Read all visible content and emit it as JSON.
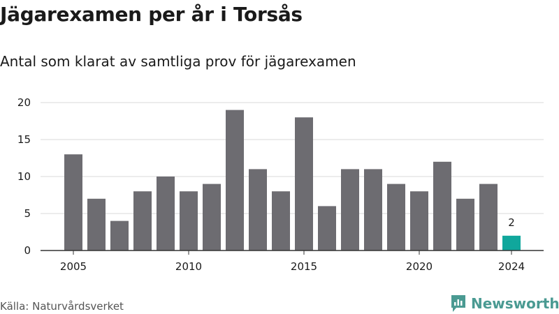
{
  "title": "Jägarexamen per år i Torsås",
  "subtitle": "Antal som klarat av samtliga prov för jägarexamen",
  "source": "Källa: Naturvårdsverket",
  "brand": "Newsworthy",
  "colors": {
    "bar": "#6d6c71",
    "highlight": "#10a79c",
    "grid": "#d9d9d9",
    "axis": "#333333",
    "brand": "#4a9a92"
  },
  "chart_data": {
    "type": "bar",
    "title": "Jägarexamen per år i Torsås",
    "subtitle": "Antal som klarat av samtliga prov för jägarexamen",
    "xlabel": "",
    "ylabel": "",
    "x": [
      2005,
      2006,
      2007,
      2008,
      2009,
      2010,
      2011,
      2012,
      2013,
      2014,
      2015,
      2016,
      2017,
      2018,
      2019,
      2020,
      2021,
      2022,
      2023,
      2024
    ],
    "values": [
      13,
      7,
      4,
      8,
      10,
      8,
      9,
      19,
      11,
      8,
      18,
      6,
      11,
      11,
      9,
      8,
      12,
      7,
      9,
      2
    ],
    "ylim": [
      0,
      20
    ],
    "yticks": [
      0,
      5,
      10,
      15,
      20
    ],
    "xticks": [
      2005,
      2010,
      2015,
      2020,
      2024
    ],
    "highlight": {
      "x": 2024,
      "label": "2"
    },
    "grid": true
  }
}
